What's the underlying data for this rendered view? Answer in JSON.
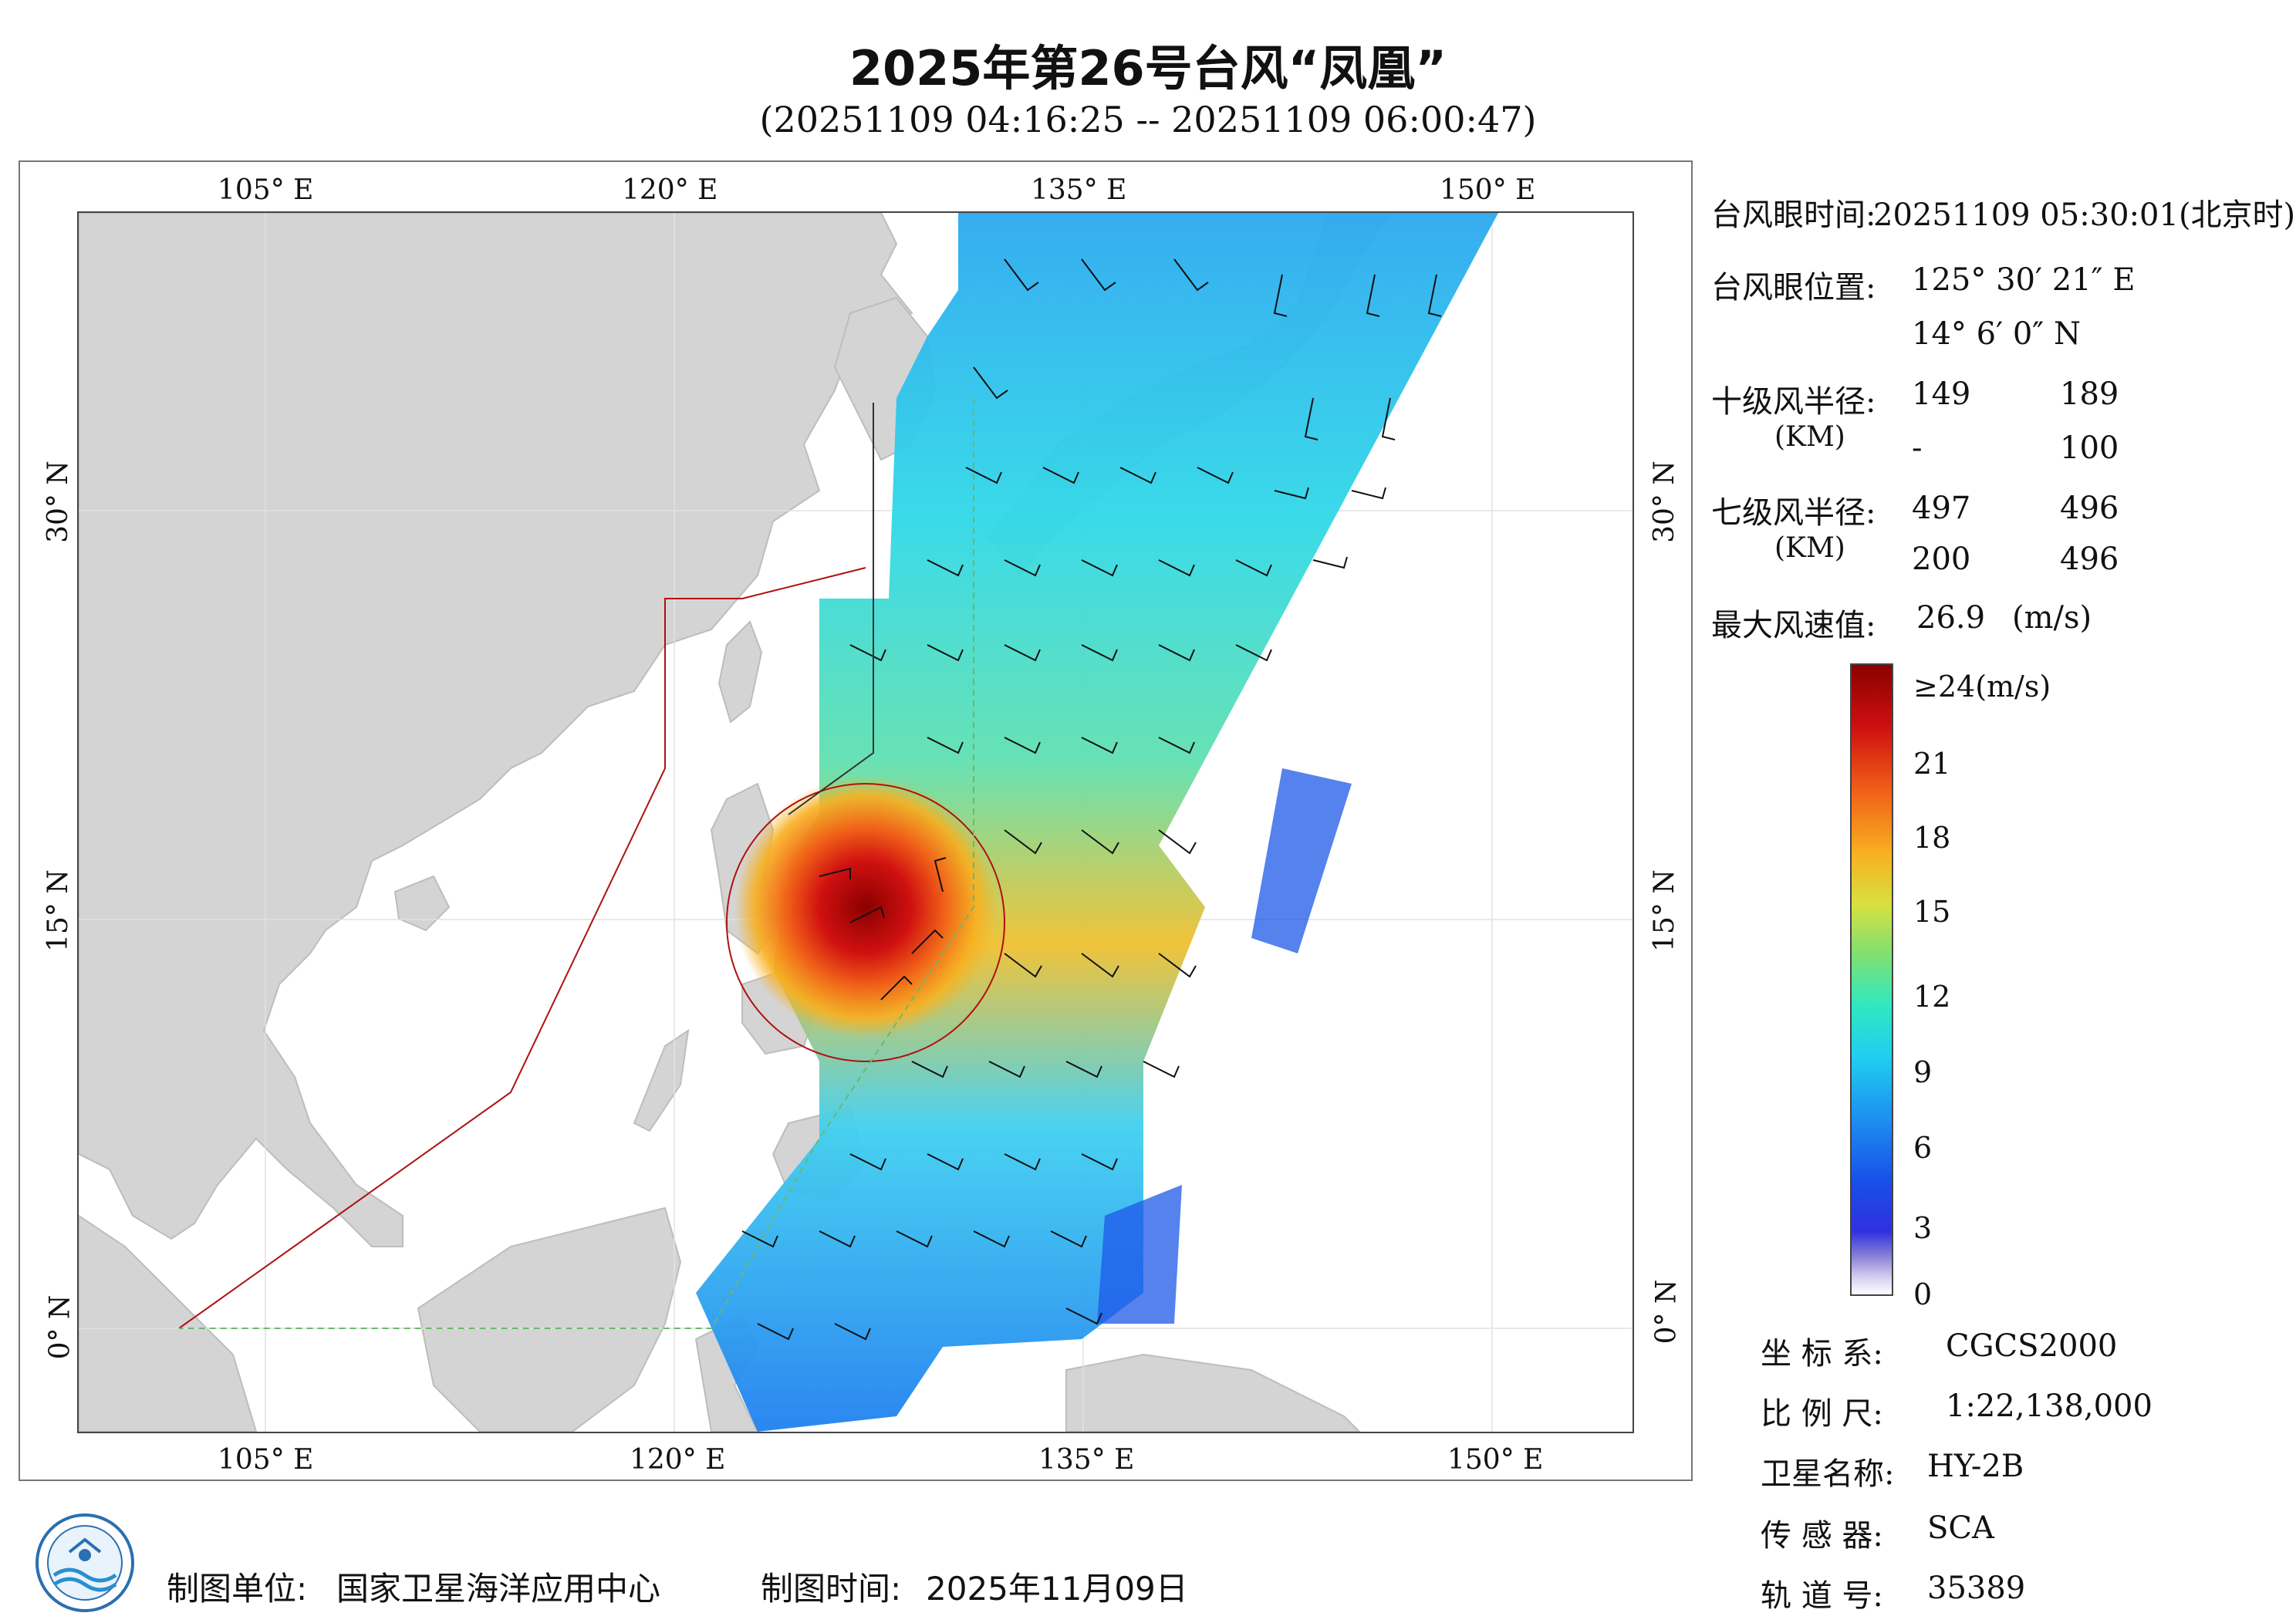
{
  "title": "2025年第26号台风“凤凰”",
  "subtitle": "(20251109 04:16:25 -- 20251109 06:00:47)",
  "map": {
    "lon_ticks": [
      "105° E",
      "120° E",
      "135° E",
      "150° E"
    ],
    "lat_ticks": [
      "30° N",
      "15° N",
      "0° N"
    ],
    "lon_values": [
      105,
      120,
      135,
      150
    ],
    "lat_values": [
      30,
      15,
      0
    ],
    "lon_range": [
      98.2,
      155.3
    ],
    "lat_range": [
      -4,
      41
    ],
    "warning_line_24h": "24小时警戒线",
    "warning_line_48h": "48小时警戒线",
    "eye_lon": 125.506,
    "eye_lat": 14.1
  },
  "info": {
    "eye_time_label": "台风眼时间:",
    "eye_time_value": "20251109 05:30:01(北京时)",
    "eye_pos_label": "台风眼位置:",
    "eye_lon": "125° 30′ 21″ E",
    "eye_lat": "14° 6′ 0″ N",
    "r10_label": "十级风半径:",
    "r10_unit": "(KM)",
    "r10_values": [
      "149",
      "189",
      "-",
      "100"
    ],
    "r7_label": "七级风半径:",
    "r7_unit": "(KM)",
    "r7_values": [
      "497",
      "496",
      "200",
      "496"
    ],
    "max_wind_label": "最大风速值:",
    "max_wind_value": "26.9",
    "max_wind_unit": "(m/s)"
  },
  "colorbar": {
    "labels": [
      "≥24(m/s)",
      "21",
      "18",
      "15",
      "12",
      "9",
      "6",
      "3",
      "0"
    ],
    "values": [
      24,
      21,
      18,
      15,
      12,
      9,
      6,
      3,
      0
    ],
    "colors": {
      "low": "#3030e0",
      "mid": "#80e070",
      "high": "#8a0000"
    }
  },
  "meta": {
    "crs_label": "坐 标 系:",
    "crs_value": "CGCS2000",
    "scale_label": "比 例 尺:",
    "scale_value": "1:22,138,000",
    "sat_label": "卫星名称:",
    "sat_value": "HY-2B",
    "sensor_label": "传 感 器:",
    "sensor_value": "SCA",
    "orbit_label": "轨 道 号:",
    "orbit_value": "35389"
  },
  "footer": {
    "org_label": "制图单位:",
    "org_value": "国家卫星海洋应用中心",
    "date_label": "制图时间:",
    "date_value": "2025年11月09日"
  },
  "logo": {
    "icon": "nsoas-logo-icon"
  }
}
